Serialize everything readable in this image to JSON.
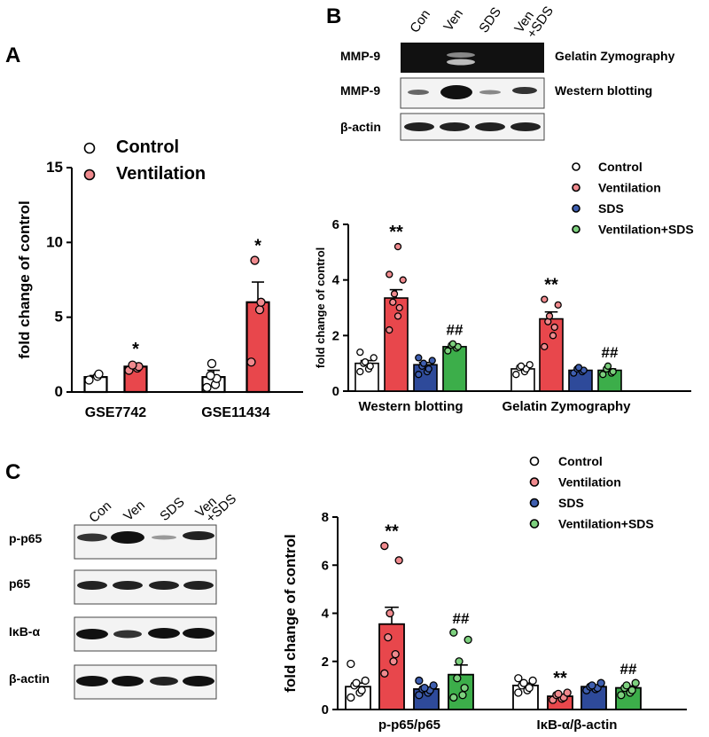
{
  "panels": {
    "A": {
      "label": "A"
    },
    "B": {
      "label": "B"
    },
    "C": {
      "label": "C"
    }
  },
  "blots": {
    "B": {
      "lanes": [
        "Con",
        "Ven",
        "SDS",
        "Ven",
        "+SDS"
      ],
      "rows": [
        {
          "label": "MMP-9",
          "note": "Gelatin Zymography"
        },
        {
          "label": "MMP-9",
          "note": "Western blotting"
        },
        {
          "label": "β-actin",
          "note": ""
        }
      ]
    },
    "C": {
      "lanes": [
        "Con",
        "Ven",
        "SDS",
        "Ven",
        "+SDS"
      ],
      "rows": [
        {
          "label": "p-p65"
        },
        {
          "label": "p65"
        },
        {
          "label": "IκB-α"
        },
        {
          "label": "β-actin"
        }
      ]
    }
  },
  "colors": {
    "control": "#ffffff",
    "ventilation": "#e8474c",
    "sds": "#2e4a9a",
    "ventilation_sds": "#3cae4a",
    "point_control": "#ffffff",
    "point_ventilation": "#f08a8e",
    "point_sds": "#3f5fb0",
    "point_ventilation_sds": "#7dd07e"
  },
  "chart_data": [
    {
      "panel": "A",
      "type": "bar",
      "ylabel": "fold change of control",
      "ylim": [
        0,
        15
      ],
      "yticks": [
        "0",
        "5",
        "10",
        "15"
      ],
      "categories": [
        "GSE7742",
        "GSE11434"
      ],
      "legend": {
        "placement": "top-left",
        "entries": [
          "Control",
          "Ventilation"
        ]
      },
      "series": [
        {
          "name": "Control",
          "values": [
            1.0,
            1.0
          ],
          "errors": [
            0.1,
            0.45
          ],
          "points": [
            [
              0.8,
              1.05,
              1.2
            ],
            [
              0.3,
              0.5,
              0.9,
              1.1,
              1.9
            ]
          ]
        },
        {
          "name": "Ventilation",
          "values": [
            1.7,
            6.0
          ],
          "errors": [
            0.2,
            1.35
          ],
          "points": [
            [
              1.45,
              1.6,
              1.7,
              1.8
            ],
            [
              2.0,
              5.5,
              6.0,
              8.8
            ]
          ]
        }
      ],
      "significance": [
        [
          null,
          null
        ],
        [
          "*",
          "*"
        ]
      ]
    },
    {
      "panel": "B",
      "type": "bar",
      "ylabel": "fold change of control",
      "ylim": [
        0,
        6
      ],
      "yticks": [
        "0",
        "2",
        "4",
        "6"
      ],
      "categories": [
        "Western blotting",
        "Gelatin Zymography"
      ],
      "legend": {
        "placement": "top-right",
        "entries": [
          "Control",
          "Ventilation",
          "SDS",
          "Ventilation+SDS"
        ]
      },
      "series": [
        {
          "name": "Control",
          "values": [
            1.0,
            0.8
          ],
          "errors": [
            0.1,
            0.05
          ],
          "points": [
            [
              0.7,
              0.8,
              0.9,
              1.0,
              1.05,
              1.2,
              1.4
            ],
            [
              0.6,
              0.7,
              0.8,
              0.85,
              0.9,
              0.95
            ]
          ]
        },
        {
          "name": "Ventilation",
          "values": [
            3.35,
            2.6
          ],
          "errors": [
            0.3,
            0.25
          ],
          "points": [
            [
              2.2,
              2.7,
              3.0,
              3.2,
              3.5,
              4.0,
              4.2,
              5.2
            ],
            [
              1.6,
              2.0,
              2.3,
              2.5,
              2.7,
              3.1,
              3.3
            ]
          ]
        },
        {
          "name": "SDS",
          "values": [
            0.95,
            0.75
          ],
          "errors": [
            0.08,
            0.04
          ],
          "points": [
            [
              0.6,
              0.7,
              0.8,
              0.9,
              1.0,
              1.1,
              1.2
            ],
            [
              0.65,
              0.7,
              0.75,
              0.8,
              0.85
            ]
          ]
        },
        {
          "name": "Ventilation+SDS",
          "values": [
            1.6,
            0.75
          ],
          "errors": [
            0.05,
            0.05
          ],
          "points": [
            [
              1.45,
              1.55,
              1.6,
              1.65,
              1.7
            ],
            [
              0.6,
              0.65,
              0.7,
              0.8,
              0.9
            ]
          ]
        }
      ],
      "significance": [
        [
          null,
          null
        ],
        [
          "**",
          "**"
        ],
        [
          null,
          null
        ],
        [
          "##",
          "##"
        ]
      ]
    },
    {
      "panel": "C",
      "type": "bar",
      "ylabel": "fold change of control",
      "ylim": [
        0,
        8
      ],
      "yticks": [
        "0",
        "2",
        "4",
        "6",
        "8"
      ],
      "categories": [
        "p-p65/p65",
        "IκB-α/β-actin"
      ],
      "legend": {
        "placement": "top-right",
        "entries": [
          "Control",
          "Ventilation",
          "SDS",
          "Ventilation+SDS"
        ]
      },
      "series": [
        {
          "name": "Control",
          "values": [
            0.95,
            1.0
          ],
          "errors": [
            0.15,
            0.1
          ],
          "points": [
            [
              0.5,
              0.7,
              0.8,
              1.0,
              1.1,
              1.2,
              1.9
            ],
            [
              0.7,
              0.8,
              0.9,
              1.0,
              1.1,
              1.2,
              1.3
            ]
          ]
        },
        {
          "name": "Ventilation",
          "values": [
            3.55,
            0.55
          ],
          "errors": [
            0.7,
            0.05
          ],
          "points": [
            [
              1.5,
              2.0,
              2.3,
              3.0,
              4.0,
              6.2,
              6.8
            ],
            [
              0.4,
              0.45,
              0.5,
              0.6,
              0.65,
              0.7
            ]
          ]
        },
        {
          "name": "SDS",
          "values": [
            0.85,
            0.95
          ],
          "errors": [
            0.08,
            0.06
          ],
          "points": [
            [
              0.6,
              0.7,
              0.8,
              0.85,
              0.9,
              1.0,
              1.2
            ],
            [
              0.8,
              0.85,
              0.9,
              0.95,
              1.0,
              1.1
            ]
          ]
        },
        {
          "name": "Ventilation+SDS",
          "values": [
            1.45,
            0.9
          ],
          "errors": [
            0.4,
            0.08
          ],
          "points": [
            [
              0.5,
              0.6,
              0.9,
              1.3,
              2.0,
              2.9,
              3.2
            ],
            [
              0.6,
              0.7,
              0.8,
              0.9,
              1.0,
              1.1
            ]
          ]
        }
      ],
      "significance": [
        [
          null,
          null
        ],
        [
          "**",
          "**"
        ],
        [
          null,
          null
        ],
        [
          "##",
          "##"
        ]
      ]
    }
  ]
}
